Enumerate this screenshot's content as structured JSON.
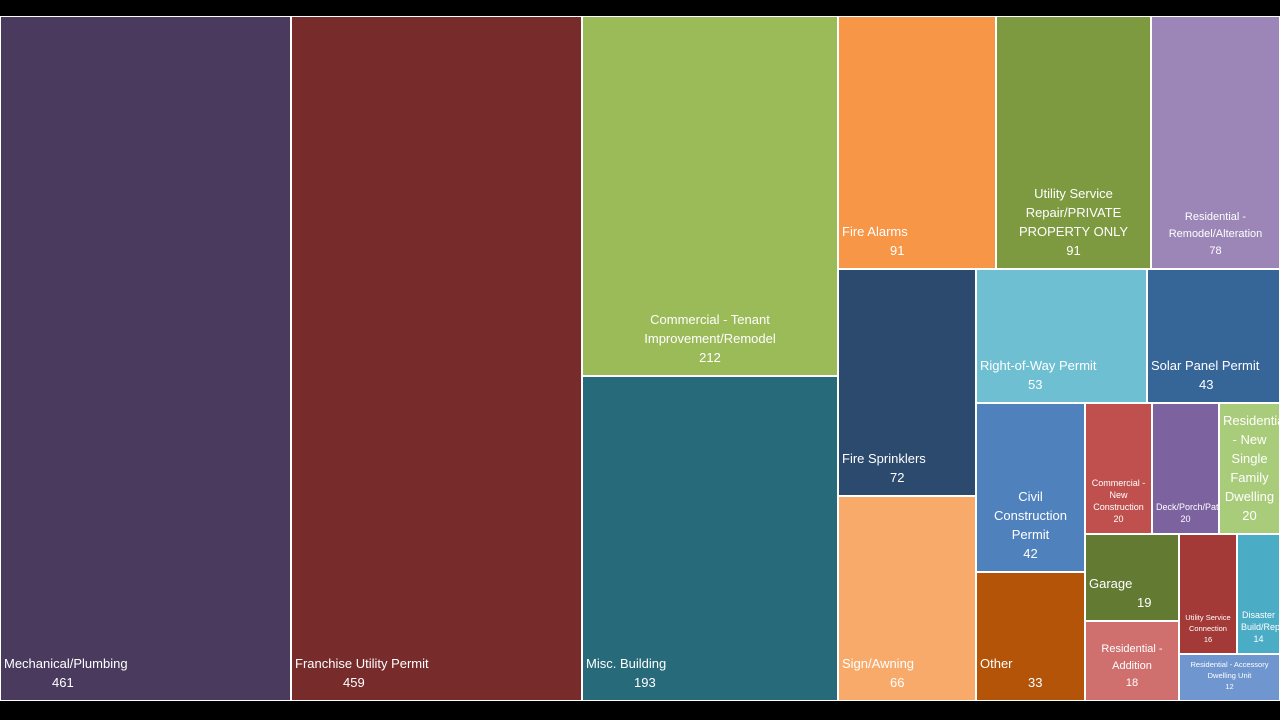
{
  "chart_data": {
    "type": "treemap",
    "title": "",
    "items": [
      {
        "name": "Mechanical/Plumbing",
        "value": 461,
        "color": "#4a3b5e"
      },
      {
        "name": "Franchise Utility Permit",
        "value": 459,
        "color": "#772b2b"
      },
      {
        "name": "Commercial - Tenant Improvement/Remodel",
        "value": 212,
        "color": "#9bbb59"
      },
      {
        "name": "Misc. Building",
        "value": 193,
        "color": "#276a79"
      },
      {
        "name": "Fire Alarms",
        "value": 91,
        "color": "#f79646"
      },
      {
        "name": "Utility Service Repair/PRIVATE PROPERTY ONLY",
        "value": 91,
        "color": "#7d9a40"
      },
      {
        "name": "Residential - Remodel/Alteration",
        "value": 78,
        "color": "#9b86b7"
      },
      {
        "name": "Fire Sprinklers",
        "value": 72,
        "color": "#2b4a6e"
      },
      {
        "name": "Sign/Awning",
        "value": 66,
        "color": "#f8aa6a"
      },
      {
        "name": "Right-of-Way Permit",
        "value": 53,
        "color": "#6fbfd3"
      },
      {
        "name": "Solar Panel Permit",
        "value": 43,
        "color": "#366598"
      },
      {
        "name": "Civil Construction Permit",
        "value": 42,
        "color": "#4f81bd"
      },
      {
        "name": "Other",
        "value": 33,
        "color": "#b45409"
      },
      {
        "name": "Commercial - New Construction",
        "value": 20,
        "color": "#c0504d"
      },
      {
        "name": "Deck/Porch/Patio",
        "value": 20,
        "color": "#7d62a0"
      },
      {
        "name": "Residential - New Single Family Dwelling",
        "value": 20,
        "color": "#a9cc7a"
      },
      {
        "name": "Garage",
        "value": 19,
        "color": "#637a32"
      },
      {
        "name": "Utility Service Connection",
        "value": 16,
        "color": "#a33a38"
      },
      {
        "name": "Disaster Build/Repair",
        "value": 14,
        "color": "#4bacc6"
      },
      {
        "name": "Residential - Addition",
        "value": 18,
        "color": "#d0706e"
      },
      {
        "name": "Residential - Accessory Dwelling Unit",
        "value": 12,
        "color": "#6f96cf"
      }
    ]
  }
}
